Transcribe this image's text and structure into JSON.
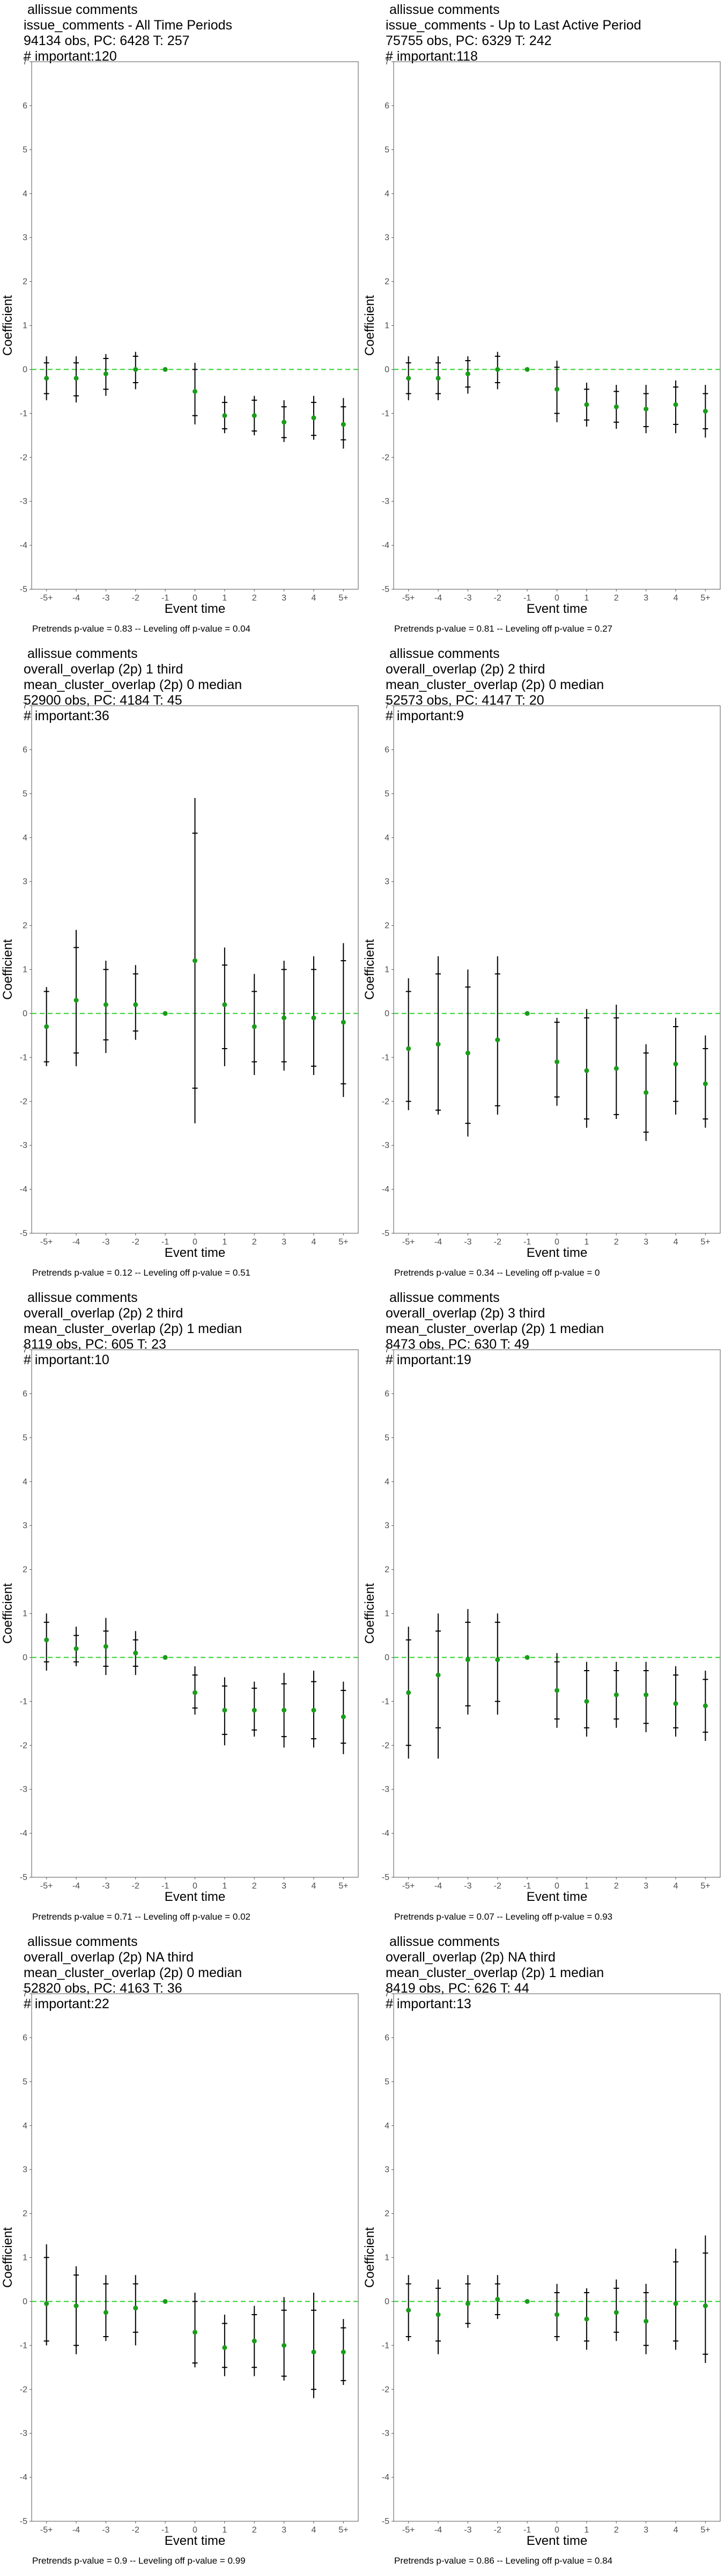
{
  "colors": {
    "point": "#1a9c1a",
    "ref_line": "#2ed12e",
    "bars": "#000000",
    "axis": "#555555"
  },
  "panels": [
    {
      "header": [
        " allissue comments",
        "issue_comments - All Time Periods",
        "94134 obs, PC: 6428 T: 257",
        "# important:120"
      ],
      "pvalues": "Pretrends p-value = 0.83 -- Leveling off p-value = 0.04",
      "chart_data": {
        "type": "scatter",
        "categories": [
          "-5+",
          "-4",
          "-3",
          "-2",
          "-1",
          "0",
          "1",
          "2",
          "3",
          "4",
          "5+"
        ],
        "xlabel": "Event time",
        "ylabel": "Coefficient",
        "ylim": [
          -5,
          7
        ],
        "yticks": [
          -5,
          -4,
          -3,
          -2,
          -1,
          0,
          1,
          2,
          3,
          4,
          5,
          6,
          7
        ],
        "values": [
          -0.2,
          -0.2,
          -0.1,
          0.0,
          0.0,
          -0.5,
          -1.05,
          -1.05,
          -1.2,
          -1.1,
          -1.25
        ],
        "ci_inner": [
          [
            -0.55,
            0.15
          ],
          [
            -0.6,
            0.15
          ],
          [
            -0.45,
            0.25
          ],
          [
            -0.3,
            0.3
          ],
          [
            0,
            0
          ],
          [
            -1.05,
            0.0
          ],
          [
            -1.35,
            -0.75
          ],
          [
            -1.4,
            -0.7
          ],
          [
            -1.55,
            -0.85
          ],
          [
            -1.5,
            -0.75
          ],
          [
            -1.6,
            -0.85
          ]
        ],
        "ci_outer": [
          [
            -0.7,
            0.3
          ],
          [
            -0.75,
            0.3
          ],
          [
            -0.6,
            0.35
          ],
          [
            -0.45,
            0.4
          ],
          [
            0,
            0
          ],
          [
            -1.25,
            0.15
          ],
          [
            -1.45,
            -0.6
          ],
          [
            -1.5,
            -0.6
          ],
          [
            -1.65,
            -0.7
          ],
          [
            -1.6,
            -0.6
          ],
          [
            -1.8,
            -0.65
          ]
        ]
      }
    },
    {
      "header": [
        " allissue comments",
        "issue_comments - Up to Last Active Period",
        "75755 obs, PC: 6329 T: 242",
        "# important:118"
      ],
      "pvalues": "Pretrends p-value = 0.81 -- Leveling off p-value = 0.27",
      "chart_data": {
        "type": "scatter",
        "categories": [
          "-5+",
          "-4",
          "-3",
          "-2",
          "-1",
          "0",
          "1",
          "2",
          "3",
          "4",
          "5+"
        ],
        "xlabel": "Event time",
        "ylabel": "Coefficient",
        "ylim": [
          -5,
          7
        ],
        "yticks": [
          -5,
          -4,
          -3,
          -2,
          -1,
          0,
          1,
          2,
          3,
          4,
          5,
          6,
          7
        ],
        "values": [
          -0.2,
          -0.2,
          -0.1,
          0.0,
          0.0,
          -0.45,
          -0.8,
          -0.85,
          -0.9,
          -0.8,
          -0.95
        ],
        "ci_inner": [
          [
            -0.55,
            0.15
          ],
          [
            -0.55,
            0.15
          ],
          [
            -0.4,
            0.2
          ],
          [
            -0.3,
            0.3
          ],
          [
            0,
            0
          ],
          [
            -1.0,
            0.05
          ],
          [
            -1.15,
            -0.45
          ],
          [
            -1.2,
            -0.5
          ],
          [
            -1.3,
            -0.55
          ],
          [
            -1.25,
            -0.4
          ],
          [
            -1.35,
            -0.55
          ]
        ],
        "ci_outer": [
          [
            -0.7,
            0.3
          ],
          [
            -0.7,
            0.3
          ],
          [
            -0.55,
            0.3
          ],
          [
            -0.45,
            0.4
          ],
          [
            0,
            0
          ],
          [
            -1.2,
            0.2
          ],
          [
            -1.3,
            -0.3
          ],
          [
            -1.35,
            -0.35
          ],
          [
            -1.45,
            -0.35
          ],
          [
            -1.45,
            -0.25
          ],
          [
            -1.55,
            -0.35
          ]
        ]
      }
    },
    {
      "header": [
        " allissue comments",
        "overall_overlap (2p) 1 third",
        "mean_cluster_overlap (2p) 0 median",
        "52900 obs, PC: 4184 T: 45",
        "# important:36"
      ],
      "pvalues": "Pretrends p-value = 0.12 -- Leveling off p-value = 0.51",
      "chart_data": {
        "type": "scatter",
        "categories": [
          "-5+",
          "-4",
          "-3",
          "-2",
          "-1",
          "0",
          "1",
          "2",
          "3",
          "4",
          "5+"
        ],
        "xlabel": "Event time",
        "ylabel": "Coefficient",
        "ylim": [
          -5,
          7
        ],
        "yticks": [
          -5,
          -4,
          -3,
          -2,
          -1,
          0,
          1,
          2,
          3,
          4,
          5,
          6,
          7
        ],
        "values": [
          -0.3,
          0.3,
          0.2,
          0.2,
          0.0,
          1.2,
          0.2,
          -0.3,
          -0.1,
          -0.1,
          -0.2
        ],
        "ci_inner": [
          [
            -1.1,
            0.5
          ],
          [
            -0.9,
            1.5
          ],
          [
            -0.6,
            1.0
          ],
          [
            -0.4,
            0.9
          ],
          [
            0,
            0
          ],
          [
            -1.7,
            4.1
          ],
          [
            -0.8,
            1.1
          ],
          [
            -1.1,
            0.5
          ],
          [
            -1.1,
            1.0
          ],
          [
            -1.2,
            1.0
          ],
          [
            -1.6,
            1.2
          ]
        ],
        "ci_outer": [
          [
            -1.2,
            0.6
          ],
          [
            -1.2,
            1.9
          ],
          [
            -0.9,
            1.2
          ],
          [
            -0.6,
            1.1
          ],
          [
            0,
            0
          ],
          [
            -2.5,
            4.9
          ],
          [
            -1.2,
            1.5
          ],
          [
            -1.4,
            0.9
          ],
          [
            -1.3,
            1.2
          ],
          [
            -1.4,
            1.3
          ],
          [
            -1.9,
            1.6
          ]
        ]
      }
    },
    {
      "header": [
        " allissue comments",
        "overall_overlap (2p) 2 third",
        "mean_cluster_overlap (2p) 0 median",
        "52573 obs, PC: 4147 T: 20",
        "# important:9"
      ],
      "pvalues": "Pretrends p-value = 0.34 -- Leveling off p-value = 0",
      "chart_data": {
        "type": "scatter",
        "categories": [
          "-5+",
          "-4",
          "-3",
          "-2",
          "-1",
          "0",
          "1",
          "2",
          "3",
          "4",
          "5+"
        ],
        "xlabel": "Event time",
        "ylabel": "Coefficient",
        "ylim": [
          -5,
          7
        ],
        "yticks": [
          -5,
          -4,
          -3,
          -2,
          -1,
          0,
          1,
          2,
          3,
          4,
          5,
          6,
          7
        ],
        "values": [
          -0.8,
          -0.7,
          -0.9,
          -0.6,
          0.0,
          -1.1,
          -1.3,
          -1.25,
          -1.8,
          -1.15,
          -1.6
        ],
        "ci_inner": [
          [
            -2.0,
            0.5
          ],
          [
            -2.2,
            0.9
          ],
          [
            -2.5,
            0.6
          ],
          [
            -2.1,
            0.9
          ],
          [
            0,
            0
          ],
          [
            -1.9,
            -0.2
          ],
          [
            -2.4,
            -0.1
          ],
          [
            -2.3,
            -0.1
          ],
          [
            -2.7,
            -0.9
          ],
          [
            -2.0,
            -0.3
          ],
          [
            -2.4,
            -0.8
          ]
        ],
        "ci_outer": [
          [
            -2.2,
            0.8
          ],
          [
            -2.3,
            1.3
          ],
          [
            -2.8,
            1.0
          ],
          [
            -2.3,
            1.3
          ],
          [
            0,
            0
          ],
          [
            -2.1,
            -0.1
          ],
          [
            -2.6,
            0.1
          ],
          [
            -2.4,
            0.2
          ],
          [
            -2.9,
            -0.7
          ],
          [
            -2.3,
            -0.1
          ],
          [
            -2.6,
            -0.5
          ]
        ]
      }
    },
    {
      "header": [
        " allissue comments",
        "overall_overlap (2p) 2 third",
        "mean_cluster_overlap (2p) 1 median",
        "8119 obs, PC: 605 T: 23",
        "# important:10"
      ],
      "pvalues": "Pretrends p-value = 0.71 -- Leveling off p-value = 0.02",
      "chart_data": {
        "type": "scatter",
        "categories": [
          "-5+",
          "-4",
          "-3",
          "-2",
          "-1",
          "0",
          "1",
          "2",
          "3",
          "4",
          "5+"
        ],
        "xlabel": "Event time",
        "ylabel": "Coefficient",
        "ylim": [
          -5,
          7
        ],
        "yticks": [
          -5,
          -4,
          -3,
          -2,
          -1,
          0,
          1,
          2,
          3,
          4,
          5,
          6,
          7
        ],
        "values": [
          0.4,
          0.2,
          0.25,
          0.1,
          0.0,
          -0.8,
          -1.2,
          -1.2,
          -1.2,
          -1.2,
          -1.35
        ],
        "ci_inner": [
          [
            -0.1,
            0.8
          ],
          [
            -0.1,
            0.5
          ],
          [
            -0.2,
            0.6
          ],
          [
            -0.2,
            0.4
          ],
          [
            0,
            0
          ],
          [
            -1.15,
            -0.4
          ],
          [
            -1.75,
            -0.65
          ],
          [
            -1.65,
            -0.7
          ],
          [
            -1.8,
            -0.6
          ],
          [
            -1.85,
            -0.55
          ],
          [
            -1.95,
            -0.75
          ]
        ],
        "ci_outer": [
          [
            -0.3,
            1.0
          ],
          [
            -0.2,
            0.7
          ],
          [
            -0.4,
            0.9
          ],
          [
            -0.4,
            0.6
          ],
          [
            0,
            0
          ],
          [
            -1.3,
            -0.2
          ],
          [
            -2.0,
            -0.45
          ],
          [
            -1.8,
            -0.55
          ],
          [
            -2.05,
            -0.35
          ],
          [
            -2.05,
            -0.3
          ],
          [
            -2.2,
            -0.55
          ]
        ]
      }
    },
    {
      "header": [
        " allissue comments",
        "overall_overlap (2p) 3 third",
        "mean_cluster_overlap (2p) 1 median",
        "8473 obs, PC: 630 T: 49",
        "# important:19"
      ],
      "pvalues": "Pretrends p-value = 0.07 -- Leveling off p-value = 0.93",
      "chart_data": {
        "type": "scatter",
        "categories": [
          "-5+",
          "-4",
          "-3",
          "-2",
          "-1",
          "0",
          "1",
          "2",
          "3",
          "4",
          "5+"
        ],
        "xlabel": "Event time",
        "ylabel": "Coefficient",
        "ylim": [
          -5,
          7
        ],
        "yticks": [
          -5,
          -4,
          -3,
          -2,
          -1,
          0,
          1,
          2,
          3,
          4,
          5,
          6,
          7
        ],
        "values": [
          -0.8,
          -0.4,
          -0.05,
          -0.05,
          0.0,
          -0.75,
          -1.0,
          -0.85,
          -0.85,
          -1.05,
          -1.1
        ],
        "ci_inner": [
          [
            -2.0,
            0.4
          ],
          [
            -1.6,
            0.6
          ],
          [
            -1.1,
            0.8
          ],
          [
            -1.0,
            0.8
          ],
          [
            0,
            0
          ],
          [
            -1.4,
            -0.1
          ],
          [
            -1.6,
            -0.3
          ],
          [
            -1.4,
            -0.3
          ],
          [
            -1.5,
            -0.3
          ],
          [
            -1.6,
            -0.4
          ],
          [
            -1.7,
            -0.5
          ]
        ],
        "ci_outer": [
          [
            -2.3,
            0.7
          ],
          [
            -2.3,
            1.0
          ],
          [
            -1.3,
            1.1
          ],
          [
            -1.3,
            1.0
          ],
          [
            0,
            0
          ],
          [
            -1.6,
            0.1
          ],
          [
            -1.8,
            -0.1
          ],
          [
            -1.6,
            -0.1
          ],
          [
            -1.7,
            -0.1
          ],
          [
            -1.8,
            -0.2
          ],
          [
            -1.9,
            -0.3
          ]
        ]
      }
    },
    {
      "header": [
        " allissue comments",
        "overall_overlap (2p) NA third",
        "mean_cluster_overlap (2p) 0 median",
        "52820 obs, PC: 4163 T: 36",
        "# important:22"
      ],
      "pvalues": "Pretrends p-value = 0.9 -- Leveling off p-value = 0.99",
      "chart_data": {
        "type": "scatter",
        "categories": [
          "-5+",
          "-4",
          "-3",
          "-2",
          "-1",
          "0",
          "1",
          "2",
          "3",
          "4",
          "5+"
        ],
        "xlabel": "Event time",
        "ylabel": "Coefficient",
        "ylim": [
          -5,
          7
        ],
        "yticks": [
          -5,
          -4,
          -3,
          -2,
          -1,
          0,
          1,
          2,
          3,
          4,
          5,
          6,
          7
        ],
        "values": [
          -0.05,
          -0.1,
          -0.25,
          -0.15,
          0.0,
          -0.7,
          -1.05,
          -0.9,
          -1.0,
          -1.15,
          -1.15
        ],
        "ci_inner": [
          [
            -0.9,
            1.0
          ],
          [
            -1.0,
            0.6
          ],
          [
            -0.8,
            0.4
          ],
          [
            -0.7,
            0.4
          ],
          [
            0,
            0
          ],
          [
            -1.4,
            0.0
          ],
          [
            -1.5,
            -0.5
          ],
          [
            -1.5,
            -0.3
          ],
          [
            -1.7,
            -0.2
          ],
          [
            -2.0,
            -0.2
          ],
          [
            -1.8,
            -0.6
          ]
        ],
        "ci_outer": [
          [
            -1.0,
            1.3
          ],
          [
            -1.2,
            0.8
          ],
          [
            -0.9,
            0.6
          ],
          [
            -1.0,
            0.6
          ],
          [
            0,
            0
          ],
          [
            -1.5,
            0.2
          ],
          [
            -1.7,
            -0.3
          ],
          [
            -1.7,
            -0.1
          ],
          [
            -1.8,
            0.1
          ],
          [
            -2.2,
            0.2
          ],
          [
            -1.9,
            -0.4
          ]
        ]
      }
    },
    {
      "header": [
        " allissue comments",
        "overall_overlap (2p) NA third",
        "mean_cluster_overlap (2p) 1 median",
        "8419 obs, PC: 626 T: 44",
        "# important:13"
      ],
      "pvalues": "Pretrends p-value = 0.86 -- Leveling off p-value = 0.84",
      "chart_data": {
        "type": "scatter",
        "categories": [
          "-5+",
          "-4",
          "-3",
          "-2",
          "-1",
          "0",
          "1",
          "2",
          "3",
          "4",
          "5+"
        ],
        "xlabel": "Event time",
        "ylabel": "Coefficient",
        "ylim": [
          -5,
          7
        ],
        "yticks": [
          -5,
          -4,
          -3,
          -2,
          -1,
          0,
          1,
          2,
          3,
          4,
          5,
          6,
          7
        ],
        "values": [
          -0.2,
          -0.3,
          -0.05,
          0.05,
          0.0,
          -0.3,
          -0.4,
          -0.25,
          -0.45,
          -0.05,
          -0.1
        ],
        "ci_inner": [
          [
            -0.8,
            0.4
          ],
          [
            -0.9,
            0.3
          ],
          [
            -0.5,
            0.4
          ],
          [
            -0.3,
            0.4
          ],
          [
            0,
            0
          ],
          [
            -0.8,
            0.2
          ],
          [
            -0.9,
            0.2
          ],
          [
            -0.7,
            0.3
          ],
          [
            -1.0,
            0.2
          ],
          [
            -0.9,
            0.9
          ],
          [
            -1.2,
            1.1
          ]
        ],
        "ci_outer": [
          [
            -0.9,
            0.6
          ],
          [
            -1.2,
            0.5
          ],
          [
            -0.6,
            0.6
          ],
          [
            -0.4,
            0.6
          ],
          [
            0,
            0
          ],
          [
            -0.9,
            0.4
          ],
          [
            -1.1,
            0.3
          ],
          [
            -0.9,
            0.5
          ],
          [
            -1.2,
            0.4
          ],
          [
            -1.1,
            1.2
          ],
          [
            -1.4,
            1.5
          ]
        ]
      }
    }
  ]
}
